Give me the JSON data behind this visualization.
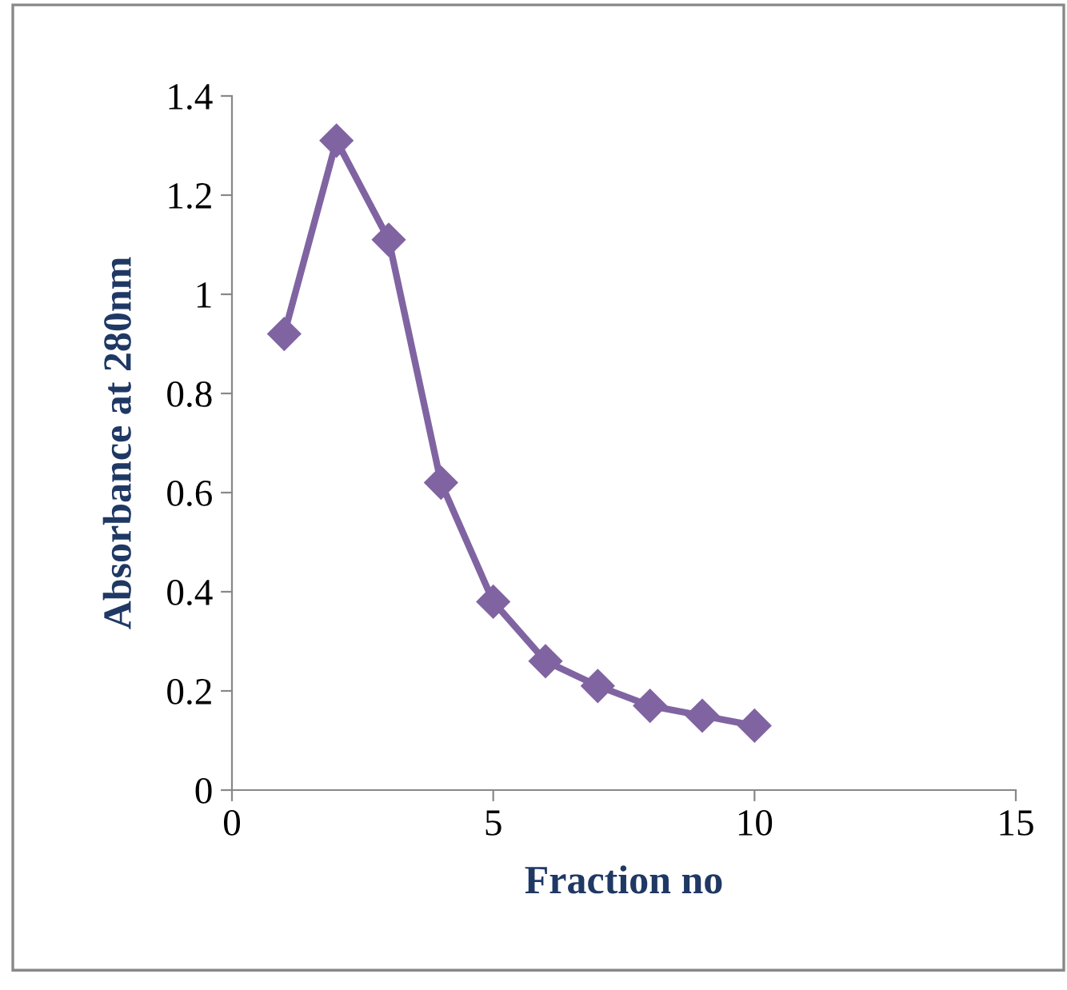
{
  "chart_data": {
    "type": "line",
    "xlabel": "Fraction no",
    "ylabel": "Absorbance at 280nm",
    "x": [
      1,
      2,
      3,
      4,
      5,
      6,
      7,
      8,
      9,
      10
    ],
    "series": [
      {
        "color": "#8064a2",
        "values": [
          0.92,
          1.31,
          1.11,
          0.62,
          0.38,
          0.26,
          0.21,
          0.17,
          0.15,
          0.13
        ]
      }
    ],
    "xlim": [
      0,
      15
    ],
    "xticks": [
      0,
      5,
      10,
      15
    ],
    "ylim": [
      0,
      1.4
    ],
    "yticks": [
      0,
      0.2,
      0.4,
      0.6,
      0.8,
      1,
      1.2,
      1.4
    ],
    "grid": false,
    "marker": "diamond",
    "line_style": "solid"
  }
}
